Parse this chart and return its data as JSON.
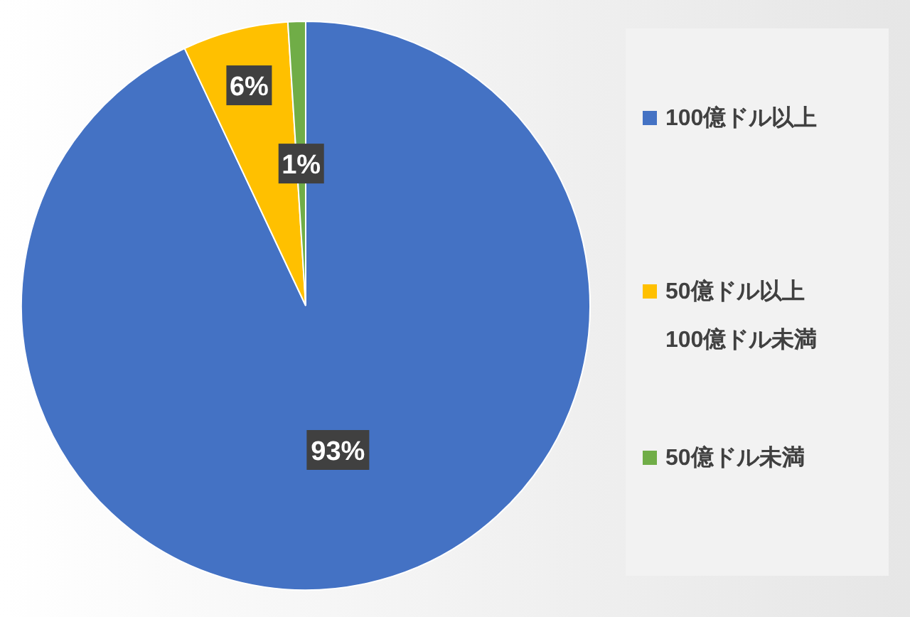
{
  "chart_data": {
    "type": "pie",
    "categories": [
      "100億ドル以上",
      "50億ドル以上\n100億ドル未満",
      "50億ドル未満"
    ],
    "values": [
      93,
      6,
      1
    ],
    "colors": [
      "#4472c4",
      "#ffc000",
      "#70ad47"
    ],
    "value_labels": [
      "93%",
      "6%",
      "1%"
    ],
    "legend": "right"
  }
}
